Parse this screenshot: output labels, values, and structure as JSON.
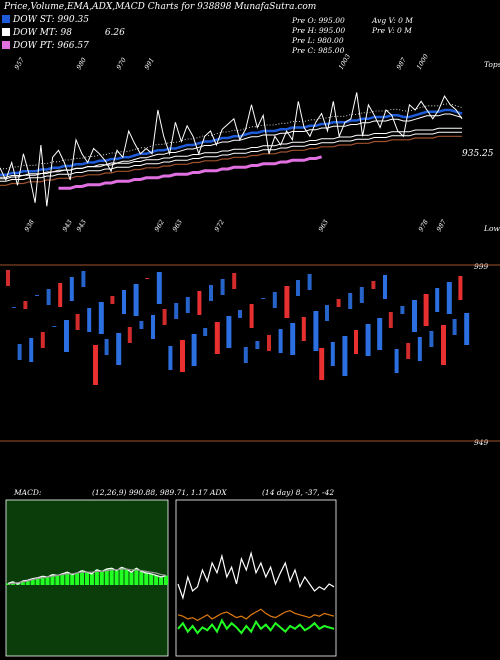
{
  "header": {
    "title": "Price,Volume,EMA,ADX,MACD Charts for 938898 MunafaSutra.com"
  },
  "legend": [
    {
      "label": "DOW ST: 990.35",
      "color": "#1e5bd8"
    },
    {
      "label": "DOW MT: 98",
      "color": "#ffffff"
    },
    {
      "label": "DOW PT: 966.57",
      "color": "#e070e0"
    }
  ],
  "legend_extra": "6.26",
  "info": {
    "col1": [
      "Pre O: 995.00",
      "Pre H: 995.00",
      "Pre L: 980.00",
      "Pre C: 985.00"
    ],
    "col2": [
      "Avg V: 0  M",
      "Pre V: 0  M"
    ]
  },
  "right_labels": {
    "top": "Tops",
    "bottom": "Lows",
    "last_price": "935.25",
    "vol_hi": "999",
    "vol_lo": "949"
  },
  "top_ticks": [
    "957",
    "980",
    "970",
    "991",
    "1003",
    "987",
    "1000"
  ],
  "bottom_ticks": [
    "938",
    "943",
    "943",
    "962",
    "963",
    "972",
    "963",
    "978",
    "987"
  ],
  "indicators": {
    "macd_label": "MACD:",
    "macd_params": "(12,26,9) 990.88, 989.71, 1.17 ADX",
    "adx_params": "(14 day) 8, -37, -42"
  },
  "colors": {
    "ema_short": "#1e5bd8",
    "ema_pt": "#e070e0",
    "ema_long": "#a0522d",
    "up": "#e83030",
    "down": "#2b6fe0",
    "hline": "#a0522d"
  },
  "chart_data": [
    {
      "type": "line",
      "title": "Price & EMA",
      "series": [
        {
          "name": "price",
          "values": [
            982,
            975,
            985,
            972,
            990,
            978,
            962,
            995,
            960,
            988,
            992,
            985,
            975,
            998,
            990,
            985,
            993,
            990,
            986,
            980,
            992,
            988,
            1003,
            996,
            990,
            993,
            990,
            1015,
            1000,
            990,
            1008,
            997,
            1006,
            1000,
            990,
            1000,
            1003,
            995,
            1004,
            1007,
            1010,
            998,
            1004,
            1018,
            1005,
            1012,
            990,
            1000,
            995,
            1003,
            998,
            1020,
            1005,
            1000,
            1008,
            1013,
            1003,
            1020,
            1000,
            1008,
            1010,
            1025,
            1000,
            1018,
            1012,
            1005,
            1015,
            1012,
            1003,
            1000,
            1018,
            1015,
            1020,
            1015,
            1010,
            1015,
            1023,
            1018,
            1015,
            1010
          ]
        },
        {
          "name": "DOW ST",
          "values": [
            978,
            978,
            979,
            979,
            980,
            980,
            980,
            981,
            981,
            982,
            982,
            983,
            983,
            984,
            984,
            985,
            985,
            986,
            986,
            987,
            987,
            988,
            988,
            989,
            990,
            990,
            991,
            992,
            992,
            993,
            993,
            994,
            995,
            995,
            996,
            997,
            997,
            998,
            999,
            999,
            1000,
            1000,
            1001,
            1002,
            1002,
            1003,
            1003,
            1003,
            1004,
            1004,
            1005,
            1005,
            1005,
            1006,
            1006,
            1007,
            1007,
            1008,
            1008,
            1008,
            1009,
            1009,
            1010,
            1010,
            1011,
            1011,
            1011,
            1012,
            1012,
            1011,
            1011,
            1012,
            1013,
            1014,
            1014,
            1014,
            1015,
            1015,
            1014,
            1013
          ]
        },
        {
          "name": "DOW PT",
          "values": [
            null,
            null,
            null,
            null,
            null,
            null,
            null,
            null,
            null,
            null,
            null,
            null,
            null,
            null,
            null,
            null,
            null,
            null,
            null,
            null,
            null,
            null,
            null,
            null,
            null,
            null,
            null,
            null,
            null,
            null,
            null,
            null,
            null,
            null,
            null,
            null,
            null,
            null,
            null,
            null,
            null,
            null,
            null,
            null,
            null,
            null,
            null,
            null,
            null,
            null,
            null,
            null,
            null,
            null,
            null,
            null,
            null,
            null,
            null,
            null,
            null,
            null,
            null,
            null,
            null,
            null,
            null,
            null,
            null,
            null,
            null,
            null,
            null,
            null,
            null,
            null,
            null,
            null,
            null,
            null
          ]
        },
        {
          "name": "long",
          "values": [
            972,
            972,
            973,
            973,
            973,
            974,
            974,
            974,
            975,
            975,
            976,
            976,
            976,
            977,
            977,
            978,
            978,
            978,
            979,
            979,
            980,
            980,
            980,
            981,
            981,
            982,
            982,
            982,
            983,
            983,
            984,
            984,
            984,
            985,
            985,
            986,
            986,
            986,
            987,
            987,
            988,
            988,
            988,
            989,
            989,
            990,
            990,
            990,
            991,
            991,
            992,
            992,
            992,
            993,
            993,
            994,
            994,
            994,
            995,
            995,
            995,
            996,
            996,
            996,
            997,
            997,
            997,
            998,
            998,
            998,
            998,
            999,
            999,
            999,
            999,
            1000,
            1000,
            1000,
            1000,
            1000
          ]
        }
      ]
    },
    {
      "type": "bar",
      "title": "Volume",
      "values": [
        2,
        0,
        2,
        1,
        3,
        0,
        2,
        2,
        0,
        3,
        4,
        3,
        2,
        2,
        3,
        5,
        4,
        2,
        1,
        4,
        3,
        2,
        4,
        1,
        0,
        3,
        4,
        2,
        3,
        2,
        4,
        2,
        4,
        3,
        1,
        2,
        4,
        2,
        4,
        2,
        1,
        2,
        3,
        1,
        0,
        2,
        2,
        3,
        4,
        4,
        2,
        3,
        2,
        5,
        4,
        2,
        3,
        1,
        5,
        2,
        3,
        2,
        4,
        1,
        4,
        3,
        2,
        3,
        1,
        2,
        4,
        3,
        4,
        2,
        3,
        5,
        4,
        2,
        3,
        4
      ],
      "ylabel": ""
    },
    {
      "type": "line",
      "title": "MACD",
      "series": [
        {
          "name": "macd",
          "values": [
            0.2,
            0.4,
            0.1,
            0.5,
            0.6,
            0.8,
            0.9,
            1.1,
            1.0,
            1.3,
            1.2,
            1.4,
            1.6,
            1.3,
            1.5,
            1.8,
            1.6,
            1.4,
            1.9,
            1.7,
            2.0,
            2.1,
            1.8,
            2.2,
            2.0,
            1.6,
            2.1,
            1.7,
            1.5,
            1.4,
            1.2,
            1.0,
            1.17
          ]
        },
        {
          "name": "signal",
          "values": [
            0.1,
            0.2,
            0.3,
            0.4,
            0.5,
            0.7,
            0.8,
            0.9,
            1.0,
            1.1,
            1.2,
            1.3,
            1.4,
            1.4,
            1.5,
            1.6,
            1.6,
            1.6,
            1.7,
            1.7,
            1.8,
            1.9,
            1.9,
            2.0,
            2.0,
            1.9,
            1.9,
            1.8,
            1.7,
            1.6,
            1.5,
            1.3,
            1.2
          ]
        }
      ]
    },
    {
      "type": "line",
      "title": "ADX",
      "series": [
        {
          "name": "di_plus",
          "values": [
            40,
            30,
            45,
            35,
            38,
            50,
            42,
            55,
            48,
            60,
            45,
            52,
            40,
            58,
            50,
            62,
            48,
            55,
            45,
            52,
            40,
            48,
            55,
            42,
            50,
            38,
            45,
            40,
            35,
            38,
            36,
            40,
            38
          ]
        },
        {
          "name": "adx",
          "values": [
            18,
            17,
            15,
            16,
            14,
            16,
            18,
            15,
            17,
            19,
            20,
            18,
            16,
            17,
            15,
            18,
            20,
            22,
            19,
            17,
            16,
            18,
            20,
            21,
            19,
            18,
            17,
            16,
            18,
            17,
            19,
            18,
            17
          ]
        },
        {
          "name": "di_minus",
          "values": [
            8,
            12,
            6,
            10,
            5,
            9,
            7,
            11,
            6,
            14,
            8,
            12,
            9,
            5,
            10,
            6,
            13,
            8,
            11,
            7,
            12,
            9,
            6,
            10,
            8,
            11,
            7,
            9,
            12,
            8,
            10,
            9,
            8
          ]
        }
      ]
    }
  ]
}
